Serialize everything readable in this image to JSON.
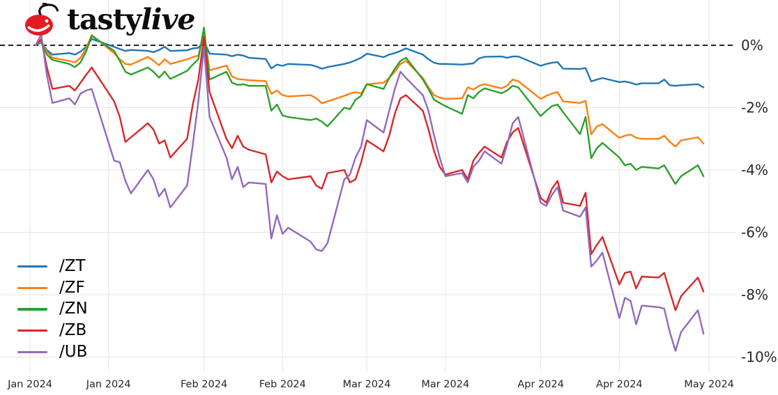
{
  "logo": {
    "brand_prefix": "tasty",
    "brand_suffix": "live",
    "icon": "cherry-icon",
    "cherry_color": "#e31b23",
    "text_color": "#0d0d0d"
  },
  "legend": {
    "position": "lower left"
  },
  "chart_data": {
    "type": "line",
    "title": "",
    "xlabel": "",
    "ylabel": "",
    "x_unit": "days since 2024-01-01",
    "grid": true,
    "background": "#ffffff",
    "gridline_color": "#e4e4e4",
    "tick_label_color": "#262626",
    "ylim": [
      -11.2,
      1.45
    ],
    "zero_line": {
      "value": 0,
      "style": "dashed",
      "color": "#000000"
    },
    "x_ticks": [
      {
        "day": 0,
        "label": "Jan 2024"
      },
      {
        "day": 14,
        "label": "Jan 2024"
      },
      {
        "day": 31,
        "label": "Feb 2024"
      },
      {
        "day": 45,
        "label": "Feb 2024"
      },
      {
        "day": 60,
        "label": "Mar 2024"
      },
      {
        "day": 74,
        "label": "Mar 2024"
      },
      {
        "day": 91,
        "label": "Apr 2024"
      },
      {
        "day": 105,
        "label": "Apr 2024"
      },
      {
        "day": 121,
        "label": "May 2024"
      }
    ],
    "y_ticks": [
      {
        "value": 0,
        "label": "0%"
      },
      {
        "value": -2,
        "label": "-2%"
      },
      {
        "value": -4,
        "label": "-4%"
      },
      {
        "value": -6,
        "label": "-6%"
      },
      {
        "value": -8,
        "label": "-8%"
      },
      {
        "value": -10,
        "label": "-10%"
      }
    ],
    "x": [
      1,
      2,
      3,
      4,
      7,
      8,
      9,
      10,
      11,
      15,
      16,
      17,
      18,
      21,
      22,
      23,
      24,
      25,
      28,
      29,
      30,
      31,
      32,
      35,
      36,
      37,
      38,
      39,
      42,
      43,
      44,
      45,
      46,
      50,
      51,
      52,
      53,
      56,
      57,
      58,
      59,
      60,
      63,
      64,
      65,
      66,
      67,
      70,
      71,
      72,
      73,
      74,
      77,
      78,
      79,
      80,
      81,
      84,
      85,
      86,
      87,
      91,
      92,
      93,
      94,
      95,
      98,
      99,
      100,
      101,
      102,
      105,
      106,
      107,
      108,
      109,
      112,
      113,
      114,
      115,
      116,
      119,
      120
    ],
    "series": [
      {
        "name": "/ZT",
        "color": "#1f77b4",
        "unit": "percent",
        "values": [
          0,
          0.1,
          -0.15,
          -0.3,
          -0.25,
          -0.3,
          -0.2,
          -0.05,
          0.2,
          -0.05,
          -0.12,
          -0.18,
          -0.15,
          -0.18,
          -0.22,
          -0.15,
          -0.05,
          -0.18,
          -0.16,
          -0.1,
          -0.08,
          0.13,
          -0.27,
          -0.3,
          -0.35,
          -0.3,
          -0.33,
          -0.4,
          -0.44,
          -0.74,
          -0.62,
          -0.66,
          -0.6,
          -0.63,
          -0.68,
          -0.75,
          -0.7,
          -0.6,
          -0.55,
          -0.48,
          -0.4,
          -0.27,
          -0.38,
          -0.3,
          -0.25,
          -0.18,
          -0.1,
          -0.3,
          -0.45,
          -0.56,
          -0.6,
          -0.6,
          -0.62,
          -0.6,
          -0.58,
          -0.42,
          -0.37,
          -0.36,
          -0.4,
          -0.36,
          -0.36,
          -0.66,
          -0.6,
          -0.56,
          -0.54,
          -0.75,
          -0.76,
          -0.73,
          -1.16,
          -1.1,
          -1.05,
          -1.18,
          -1.16,
          -1.2,
          -1.26,
          -1.22,
          -1.22,
          -1.1,
          -1.28,
          -1.3,
          -1.28,
          -1.25,
          -1.35
        ]
      },
      {
        "name": "/ZF",
        "color": "#ff7f0e",
        "unit": "percent",
        "values": [
          0,
          0.1,
          -0.2,
          -0.4,
          -0.5,
          -0.55,
          -0.4,
          -0.1,
          0.33,
          -0.26,
          -0.45,
          -0.6,
          -0.62,
          -0.37,
          -0.5,
          -0.64,
          -0.45,
          -0.6,
          -0.45,
          -0.38,
          -0.33,
          0.4,
          -0.8,
          -0.65,
          -1.0,
          -1.08,
          -1.1,
          -1.12,
          -1.15,
          -1.56,
          -1.45,
          -1.6,
          -1.64,
          -1.6,
          -1.7,
          -1.86,
          -1.8,
          -1.62,
          -1.55,
          -1.5,
          -1.55,
          -1.25,
          -1.2,
          -1.05,
          -0.85,
          -0.6,
          -0.5,
          -1.05,
          -1.35,
          -1.6,
          -1.68,
          -1.72,
          -1.7,
          -1.35,
          -1.42,
          -1.3,
          -1.25,
          -1.38,
          -1.3,
          -1.1,
          -1.15,
          -1.72,
          -1.62,
          -1.55,
          -1.5,
          -1.8,
          -1.85,
          -1.78,
          -2.86,
          -2.6,
          -2.53,
          -2.97,
          -2.9,
          -2.86,
          -2.97,
          -3.0,
          -3.0,
          -2.9,
          -3.1,
          -3.25,
          -3.05,
          -2.95,
          -3.15
        ]
      },
      {
        "name": "/ZN",
        "color": "#2ca02c",
        "unit": "percent",
        "values": [
          0,
          0.1,
          -0.3,
          -0.47,
          -0.6,
          -0.7,
          -0.55,
          -0.2,
          0.3,
          -0.18,
          -0.5,
          -0.85,
          -0.94,
          -0.71,
          -0.85,
          -1.04,
          -0.84,
          -1.08,
          -0.82,
          -0.62,
          -0.45,
          0.57,
          -1.1,
          -0.85,
          -1.2,
          -1.27,
          -1.25,
          -1.3,
          -1.3,
          -2.1,
          -1.9,
          -2.25,
          -2.3,
          -2.4,
          -2.35,
          -2.45,
          -2.6,
          -2.0,
          -2.05,
          -1.75,
          -1.62,
          -1.25,
          -1.4,
          -1.05,
          -0.75,
          -0.5,
          -0.4,
          -1.1,
          -1.4,
          -1.75,
          -1.85,
          -1.95,
          -2.2,
          -1.6,
          -1.7,
          -1.5,
          -1.38,
          -1.54,
          -1.45,
          -1.3,
          -1.35,
          -2.27,
          -2.1,
          -1.95,
          -1.9,
          -2.15,
          -2.85,
          -2.3,
          -3.62,
          -3.3,
          -3.13,
          -3.6,
          -3.85,
          -3.8,
          -4.0,
          -3.9,
          -3.95,
          -3.85,
          -4.15,
          -4.45,
          -4.2,
          -3.85,
          -4.2
        ]
      },
      {
        "name": "/ZB",
        "color": "#d62728",
        "unit": "percent",
        "values": [
          0,
          0.2,
          -0.7,
          -1.4,
          -1.3,
          -1.45,
          -1.2,
          -0.95,
          -0.71,
          -1.8,
          -2.3,
          -3.1,
          -2.95,
          -2.5,
          -2.7,
          -3.15,
          -3.05,
          -3.6,
          -3.0,
          -1.9,
          -1.1,
          0.27,
          -1.5,
          -3.0,
          -3.3,
          -2.9,
          -3.25,
          -3.35,
          -3.5,
          -4.4,
          -4.05,
          -4.2,
          -4.3,
          -4.2,
          -4.5,
          -4.6,
          -4.1,
          -4.0,
          -4.4,
          -4.3,
          -3.75,
          -3.05,
          -3.4,
          -2.9,
          -2.2,
          -1.7,
          -1.6,
          -2.1,
          -2.7,
          -3.4,
          -3.9,
          -4.15,
          -4.0,
          -4.3,
          -3.7,
          -3.45,
          -3.25,
          -3.6,
          -3.1,
          -2.8,
          -2.65,
          -4.9,
          -5.05,
          -4.6,
          -4.35,
          -5.05,
          -5.15,
          -4.73,
          -6.7,
          -6.4,
          -6.15,
          -7.67,
          -7.3,
          -7.26,
          -7.8,
          -7.42,
          -7.45,
          -7.3,
          -7.9,
          -8.5,
          -8.05,
          -7.45,
          -7.9
        ]
      },
      {
        "name": "/UB",
        "color": "#9467bd",
        "unit": "percent",
        "values": [
          0,
          0.35,
          -0.95,
          -1.85,
          -1.7,
          -1.9,
          -1.55,
          -1.45,
          -1.4,
          -3.7,
          -3.75,
          -4.35,
          -4.75,
          -4.0,
          -4.3,
          -4.85,
          -4.6,
          -5.2,
          -4.5,
          -3.2,
          -1.8,
          -0.05,
          -2.3,
          -3.6,
          -4.3,
          -3.9,
          -4.55,
          -4.4,
          -4.45,
          -6.2,
          -5.45,
          -6.05,
          -5.85,
          -6.3,
          -6.55,
          -6.6,
          -6.35,
          -4.3,
          -4.15,
          -3.6,
          -3.25,
          -2.4,
          -2.8,
          -2.1,
          -1.4,
          -0.85,
          -1.05,
          -1.6,
          -2.1,
          -2.9,
          -3.6,
          -4.2,
          -4.1,
          -4.4,
          -3.9,
          -3.7,
          -3.4,
          -3.8,
          -3.2,
          -2.5,
          -2.3,
          -5.05,
          -5.15,
          -4.8,
          -4.55,
          -5.3,
          -5.5,
          -5.2,
          -7.1,
          -6.9,
          -6.65,
          -8.75,
          -8.1,
          -8.2,
          -8.95,
          -8.35,
          -8.4,
          -8.45,
          -9.2,
          -9.8,
          -9.2,
          -8.5,
          -9.25
        ]
      }
    ]
  }
}
